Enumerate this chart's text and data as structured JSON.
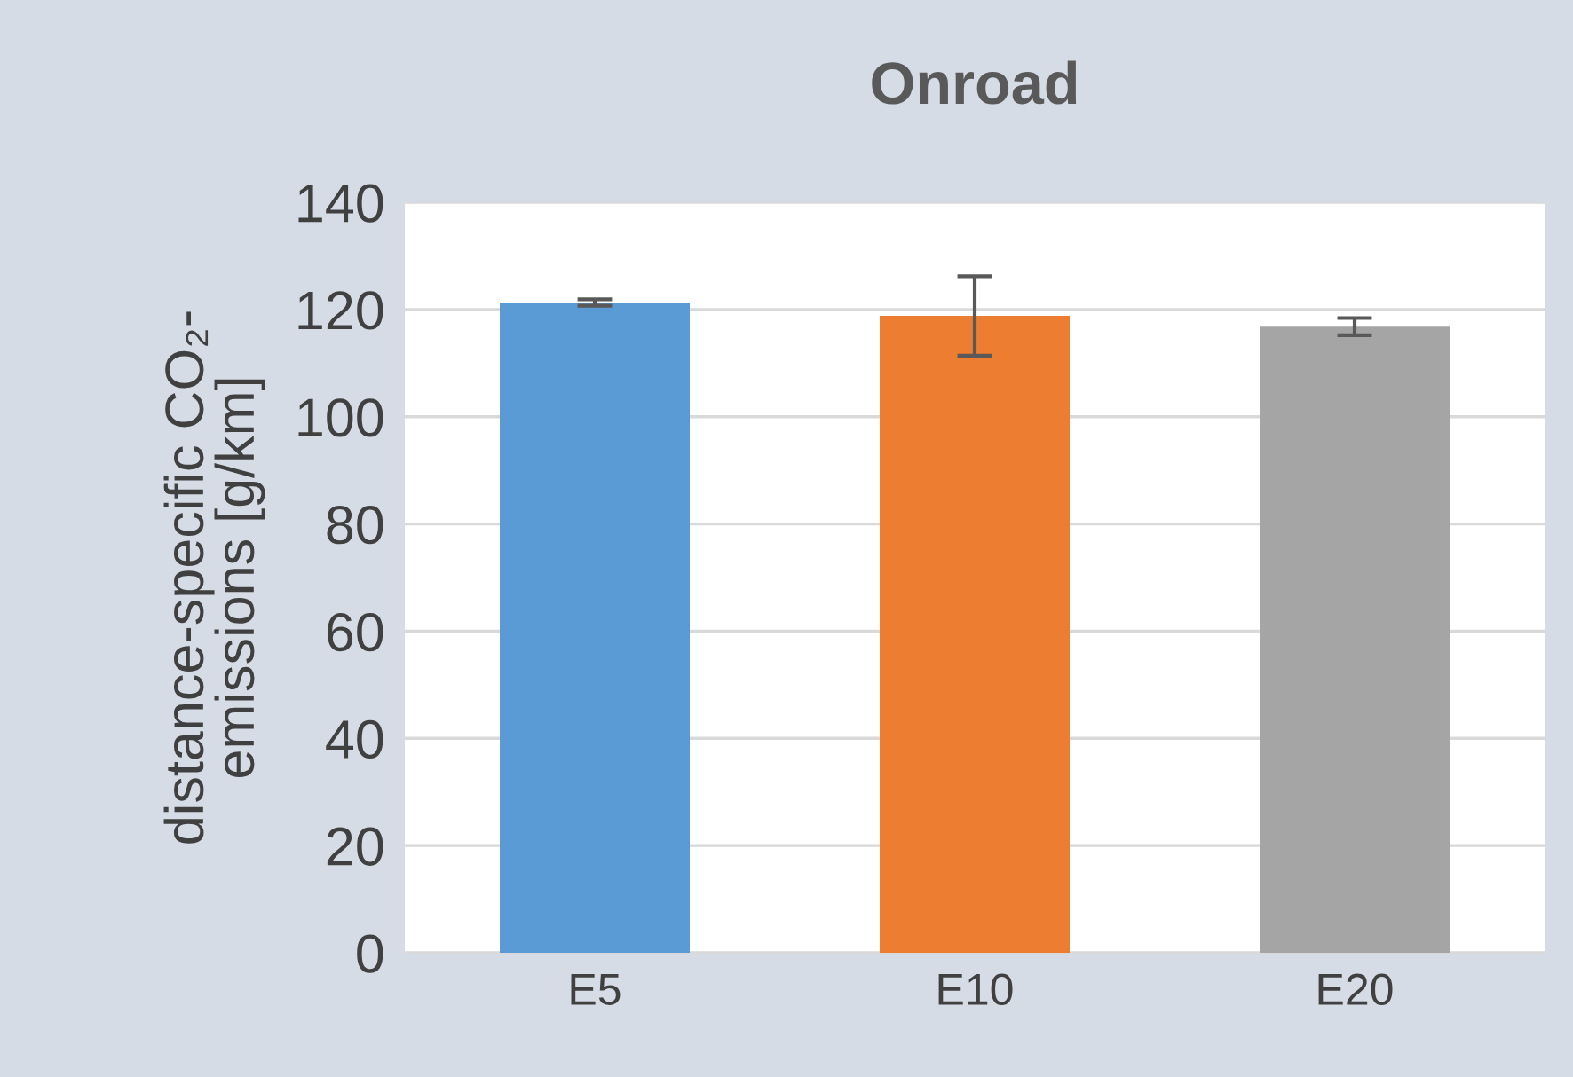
{
  "chart_data": {
    "type": "bar",
    "title": "Onroad",
    "ylabel": "distance-specific CO₂-\nemissions [g/km]",
    "categories": [
      "E5",
      "E10",
      "E20"
    ],
    "values": [
      121.3,
      118.8,
      116.8
    ],
    "colors": [
      "#5b9bd5",
      "#ed7d31",
      "#a5a5a5"
    ],
    "errors": [
      0.6,
      7.4,
      1.6
    ],
    "ylim": [
      0,
      140
    ],
    "yticks": [
      0,
      20,
      40,
      60,
      80,
      100,
      120,
      140
    ],
    "grid": "y"
  }
}
